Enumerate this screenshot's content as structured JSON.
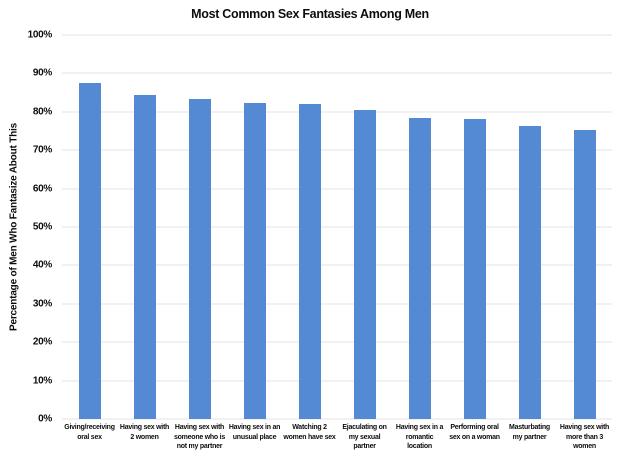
{
  "chart_data": {
    "type": "bar",
    "title": "Most Common Sex Fantasies Among Men",
    "xlabel": "",
    "ylabel": "Percentage of Men Who Fantasize About This",
    "ylim": [
      0,
      100
    ],
    "ytick_labels": [
      "0%",
      "10%",
      "20%",
      "30%",
      "40%",
      "50%",
      "60%",
      "70%",
      "80%",
      "90%",
      "100%"
    ],
    "grid": true,
    "legend": false,
    "bar_color": "#548ad4",
    "gridline_color": "#e3e3e3",
    "categories": [
      "Giving/receiving oral sex",
      "Having sex with 2 women",
      "Having sex with someone who is not my partner",
      "Having sex in an unusual place",
      "Watching 2 women have sex",
      "Ejaculating on my sexual partner",
      "Having sex in a romantic location",
      "Performing oral sex on a woman",
      "Masturbating my partner",
      "Having sex with more than 3 women"
    ],
    "category_display": [
      "Giving/receiving\noral sex",
      "Having sex with\n2 women",
      "Having sex with\nsomeone who is\nnot my partner",
      "Having sex in an\nunusual place",
      "Watching 2\nwomen have sex",
      "Ejaculating on\nmy sexual\npartner",
      "Having sex in a\nromantic\nlocation",
      "Performing oral\nsex on a woman",
      "Masturbating\nmy partner",
      "Having sex with\nmore than 3\nwomen"
    ],
    "values": [
      87.6,
      84.5,
      83.4,
      82.3,
      82.1,
      80.4,
      78.5,
      78.1,
      76.4,
      75.3
    ]
  }
}
